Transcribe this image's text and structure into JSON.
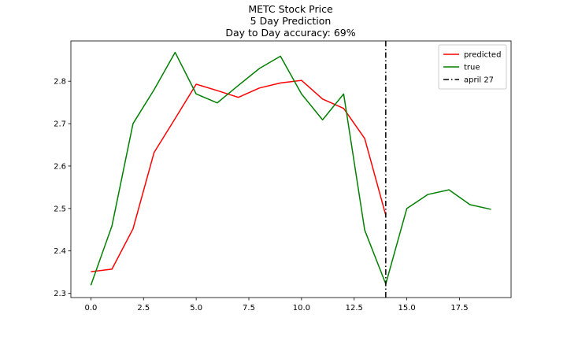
{
  "chart_data": {
    "type": "line",
    "title_lines": [
      "METC Stock Price",
      "5 Day Prediction",
      "Day to Day accuracy: 69%"
    ],
    "xlabel": "",
    "ylabel": "",
    "xlim": [
      -0.95,
      19.95
    ],
    "ylim": [
      2.29,
      2.895
    ],
    "x_ticks": [
      0.0,
      2.5,
      5.0,
      7.5,
      10.0,
      12.5,
      15.0,
      17.5
    ],
    "x_tick_labels": [
      "0.0",
      "2.5",
      "5.0",
      "7.5",
      "10.0",
      "12.5",
      "15.0",
      "17.5"
    ],
    "y_ticks": [
      2.3,
      2.4,
      2.5,
      2.6,
      2.7,
      2.8
    ],
    "y_tick_labels": [
      "2.3",
      "2.4",
      "2.5",
      "2.6",
      "2.7",
      "2.8"
    ],
    "grid": false,
    "legend_position": "top-right",
    "series": [
      {
        "name": "predicted",
        "color": "#ff0000",
        "dash": "solid",
        "x": [
          0,
          1,
          2,
          3,
          4,
          5,
          6,
          7,
          8,
          9,
          10,
          11,
          12,
          13,
          14
        ],
        "values": [
          2.351,
          2.357,
          2.452,
          2.632,
          2.712,
          2.793,
          2.778,
          2.762,
          2.784,
          2.796,
          2.802,
          2.758,
          2.736,
          2.665,
          2.484
        ]
      },
      {
        "name": "true",
        "color": "#008000",
        "dash": "solid",
        "x": [
          0,
          1,
          2,
          3,
          4,
          5,
          6,
          7,
          8,
          9,
          10,
          11,
          12,
          13,
          14,
          15,
          16,
          17,
          18,
          19
        ],
        "values": [
          2.319,
          2.459,
          2.7,
          2.78,
          2.868,
          2.77,
          2.749,
          2.79,
          2.83,
          2.859,
          2.77,
          2.709,
          2.77,
          2.449,
          2.322,
          2.5,
          2.533,
          2.544,
          2.509,
          2.498
        ]
      }
    ],
    "vlines": [
      {
        "name": "april 27",
        "x": 14,
        "color": "#000000",
        "dash": "dashdot"
      }
    ]
  }
}
